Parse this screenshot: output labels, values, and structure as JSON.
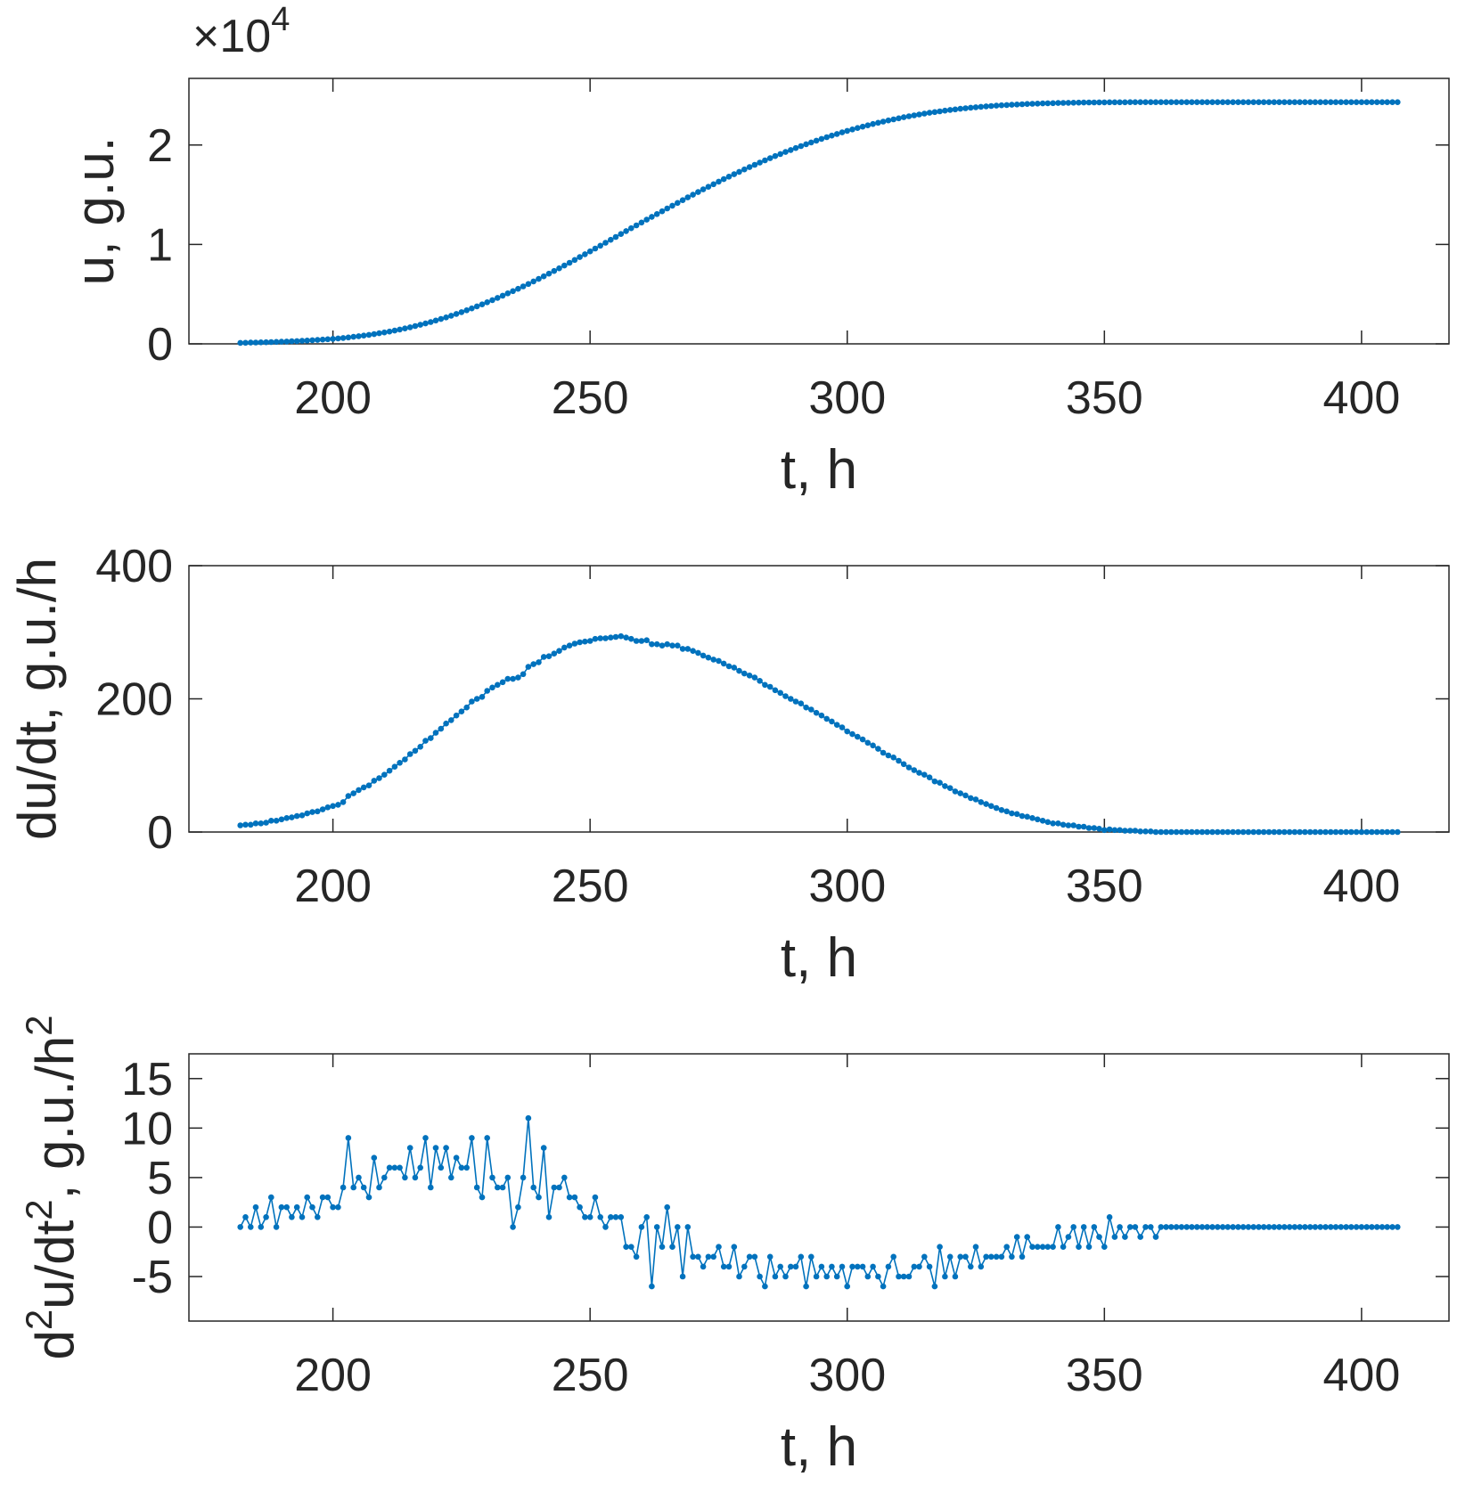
{
  "chart_data": [
    {
      "type": "line",
      "marker": "dot",
      "color": "#0072BD",
      "xlabel": "t, h",
      "ylabel_parts": [
        {
          "text": "u, g.u."
        }
      ],
      "y_exponent_label": {
        "times": "×10",
        "power": "4"
      },
      "xlim": [
        172,
        417
      ],
      "ylim": [
        0,
        26700
      ],
      "xticks": [
        200,
        250,
        300,
        350,
        400
      ],
      "yticks": [
        0,
        10000,
        20000
      ],
      "yticklabels": [
        "0",
        "1",
        "2"
      ],
      "grid": false,
      "series_key": "u"
    },
    {
      "type": "line",
      "marker": "dot",
      "color": "#0072BD",
      "xlabel": "t, h",
      "ylabel_parts": [
        {
          "text": "du/dt, g.u./h"
        }
      ],
      "xlim": [
        172,
        417
      ],
      "ylim": [
        0,
        400
      ],
      "xticks": [
        200,
        250,
        300,
        350,
        400
      ],
      "yticks": [
        0,
        200,
        400
      ],
      "yticklabels": [
        "0",
        "200",
        "400"
      ],
      "grid": false,
      "series_key": "du"
    },
    {
      "type": "line",
      "marker": "dot",
      "color": "#0072BD",
      "xlabel": "t, h",
      "ylabel_parts": [
        {
          "text": "d"
        },
        {
          "text": "2",
          "sup": true
        },
        {
          "text": "u/dt"
        },
        {
          "text": "2",
          "sup": true
        },
        {
          "text": ", g.u./h"
        },
        {
          "text": "2",
          "sup": true
        }
      ],
      "xlim": [
        172,
        417
      ],
      "ylim": [
        -9.5,
        17.5
      ],
      "xticks": [
        200,
        250,
        300,
        350,
        400
      ],
      "yticks": [
        -5,
        0,
        5,
        10,
        15
      ],
      "yticklabels": [
        "-5",
        "0",
        "5",
        "10",
        "15"
      ],
      "grid": false,
      "series_key": "d2u"
    }
  ],
  "series": {
    "t": [
      182,
      183,
      184,
      185,
      186,
      187,
      188,
      189,
      190,
      191,
      192,
      193,
      194,
      195,
      196,
      197,
      198,
      199,
      200,
      201,
      202,
      203,
      204,
      205,
      206,
      207,
      208,
      209,
      210,
      211,
      212,
      213,
      214,
      215,
      216,
      217,
      218,
      219,
      220,
      221,
      222,
      223,
      224,
      225,
      226,
      227,
      228,
      229,
      230,
      231,
      232,
      233,
      234,
      235,
      236,
      237,
      238,
      239,
      240,
      241,
      242,
      243,
      244,
      245,
      246,
      247,
      248,
      249,
      250,
      251,
      252,
      253,
      254,
      255,
      256,
      257,
      258,
      259,
      260,
      261,
      262,
      263,
      264,
      265,
      266,
      267,
      268,
      269,
      270,
      271,
      272,
      273,
      274,
      275,
      276,
      277,
      278,
      279,
      280,
      281,
      282,
      283,
      284,
      285,
      286,
      287,
      288,
      289,
      290,
      291,
      292,
      293,
      294,
      295,
      296,
      297,
      298,
      299,
      300,
      301,
      302,
      303,
      304,
      305,
      306,
      307,
      308,
      309,
      310,
      311,
      312,
      313,
      314,
      315,
      316,
      317,
      318,
      319,
      320,
      321,
      322,
      323,
      324,
      325,
      326,
      327,
      328,
      329,
      330,
      331,
      332,
      333,
      334,
      335,
      336,
      337,
      338,
      339,
      340,
      341,
      342,
      343,
      344,
      345,
      346,
      347,
      348,
      349,
      350,
      351,
      352,
      353,
      354,
      355,
      356,
      357,
      358,
      359,
      360,
      361,
      362,
      363,
      364,
      365,
      366,
      367,
      368,
      369,
      370,
      371,
      372,
      373,
      374,
      375,
      376,
      377,
      378,
      379,
      380,
      381,
      382,
      383,
      384,
      385,
      386,
      387,
      388,
      389,
      390,
      391,
      392,
      393,
      394,
      395,
      396,
      397,
      398,
      399,
      400,
      401,
      402,
      403,
      404,
      405,
      406,
      407
    ],
    "u": [
      100,
      111,
      122,
      135,
      148,
      162,
      179,
      196,
      215,
      236,
      258,
      282,
      307,
      335,
      365,
      396,
      430,
      467,
      506,
      547,
      592,
      646,
      704,
      767,
      834,
      904,
      981,
      1062,
      1148,
      1240,
      1338,
      1442,
      1551,
      1668,
      1790,
      1918,
      2055,
      2196,
      2345,
      2500,
      2663,
      2831,
      3006,
      3187,
      3374,
      3570,
      3770,
      3973,
      4185,
      4402,
      4623,
      4848,
      5078,
      5308,
      5540,
      5777,
      6025,
      6277,
      6532,
      6795,
      7059,
      7327,
      7599,
      7876,
      8156,
      8439,
      8724,
      9010,
      9297,
      9587,
      9878,
      10169,
      10461,
      10754,
      11048,
      11340,
      11630,
      11917,
      12204,
      12492,
      12774,
      13056,
      13336,
      13618,
      13898,
      14178,
      14453,
      14728,
      15000,
      15269,
      15534,
      15796,
      16055,
      16312,
      16565,
      16814,
      17061,
      17303,
      17541,
      17776,
      18008,
      18235,
      18456,
      18674,
      18887,
      19096,
      19300,
      19500,
      19696,
      19889,
      20076,
      20260,
      20439,
      20614,
      20784,
      20950,
      21111,
      21268,
      21419,
      21566,
      21709,
      21848,
      21982,
      22112,
      22237,
      22356,
      22471,
      22583,
      22690,
      22792,
      22889,
      22982,
      23071,
      23157,
      23239,
      23315,
      23389,
      23458,
      23524,
      23585,
      23643,
      23698,
      23749,
      23798,
      23843,
      23885,
      23924,
      23960,
      23993,
      24024,
      24052,
      24079,
      24103,
      24126,
      24147,
      24166,
      24183,
      24198,
      24211,
      24224,
      24235,
      24245,
      24255,
      24263,
      24271,
      24277,
      24283,
      24288,
      24291,
      24295,
      24298,
      24301,
      24303,
      24305,
      24307,
      24308,
      24309,
      24310,
      24310,
      24310,
      24310,
      24310,
      24310,
      24310,
      24310,
      24310,
      24310,
      24310,
      24310,
      24310,
      24310,
      24310,
      24310,
      24310,
      24310,
      24310,
      24310,
      24310,
      24310,
      24310,
      24310,
      24310,
      24310,
      24310,
      24310,
      24310,
      24310,
      24310,
      24310,
      24310,
      24310,
      24310,
      24310,
      24310,
      24310,
      24310,
      24310,
      24310,
      24310,
      24310,
      24310,
      24310,
      24310,
      24310,
      24310,
      24310
    ],
    "du": [
      10,
      11,
      11,
      13,
      13,
      14,
      17,
      17,
      19,
      21,
      22,
      24,
      25,
      28,
      30,
      31,
      34,
      37,
      39,
      41,
      45,
      54,
      58,
      63,
      67,
      70,
      77,
      81,
      86,
      92,
      98,
      104,
      109,
      117,
      122,
      128,
      137,
      141,
      149,
      155,
      163,
      168,
      175,
      181,
      187,
      196,
      200,
      203,
      212,
      217,
      221,
      225,
      230,
      230,
      232,
      237,
      248,
      252,
      255,
      263,
      264,
      268,
      272,
      277,
      280,
      283,
      285,
      286,
      287,
      290,
      291,
      291,
      292,
      293,
      294,
      292,
      290,
      287,
      287,
      288,
      282,
      282,
      280,
      282,
      280,
      280,
      275,
      275,
      272,
      269,
      265,
      262,
      259,
      257,
      253,
      249,
      247,
      242,
      238,
      235,
      232,
      227,
      221,
      218,
      213,
      209,
      204,
      200,
      196,
      193,
      187,
      184,
      179,
      175,
      170,
      166,
      161,
      157,
      151,
      147,
      143,
      139,
      134,
      130,
      125,
      119,
      115,
      112,
      107,
      102,
      97,
      93,
      89,
      86,
      82,
      76,
      74,
      69,
      66,
      61,
      58,
      55,
      51,
      49,
      45,
      42,
      39,
      36,
      33,
      31,
      28,
      27,
      24,
      23,
      21,
      19,
      17,
      15,
      13,
      13,
      11,
      10,
      10,
      8,
      8,
      6,
      6,
      5,
      3,
      4,
      3,
      3,
      2,
      2,
      2,
      1,
      1,
      1,
      0,
      0,
      0,
      0,
      0,
      0,
      0,
      0,
      0,
      0,
      0,
      0,
      0,
      0,
      0,
      0,
      0,
      0,
      0,
      0,
      0,
      0,
      0,
      0,
      0,
      0,
      0,
      0,
      0,
      0,
      0,
      0,
      0,
      0,
      0,
      0,
      0,
      0,
      0,
      0,
      0,
      0,
      0,
      0,
      0,
      0,
      0,
      0,
      0,
      0,
      0,
      0,
      0,
      0
    ],
    "d2u": [
      0,
      1,
      0,
      2,
      0,
      1,
      3,
      0,
      2,
      2,
      1,
      2,
      1,
      3,
      2,
      1,
      3,
      3,
      2,
      2,
      4,
      9,
      4,
      5,
      4,
      3,
      7,
      4,
      5,
      6,
      6,
      6,
      5,
      8,
      5,
      6,
      9,
      4,
      8,
      6,
      8,
      5,
      7,
      6,
      6,
      9,
      4,
      3,
      9,
      5,
      4,
      4,
      5,
      0,
      2,
      5,
      11,
      4,
      3,
      8,
      1,
      4,
      4,
      5,
      3,
      3,
      2,
      1,
      1,
      3,
      1,
      0,
      1,
      1,
      1,
      -2,
      -2,
      -3,
      0,
      1,
      -6,
      0,
      -2,
      2,
      -2,
      0,
      -5,
      0,
      -3,
      -3,
      -4,
      -3,
      -3,
      -2,
      -4,
      -4,
      -2,
      -5,
      -4,
      -3,
      -3,
      -5,
      -6,
      -3,
      -5,
      -4,
      -5,
      -4,
      -4,
      -3,
      -6,
      -3,
      -5,
      -4,
      -5,
      -4,
      -5,
      -4,
      -6,
      -4,
      -4,
      -4,
      -5,
      -4,
      -5,
      -6,
      -4,
      -3,
      -5,
      -5,
      -5,
      -4,
      -4,
      -3,
      -4,
      -6,
      -2,
      -5,
      -3,
      -5,
      -3,
      -3,
      -4,
      -2,
      -4,
      -3,
      -3,
      -3,
      -3,
      -2,
      -3,
      -1,
      -3,
      -1,
      -2,
      -2,
      -2,
      -2,
      -2,
      0,
      -2,
      -1,
      0,
      -2,
      0,
      -2,
      0,
      -1,
      -2,
      1,
      -1,
      0,
      -1,
      0,
      0,
      -1,
      0,
      0,
      -1,
      0,
      0,
      0,
      0,
      0,
      0,
      0,
      0,
      0,
      0,
      0,
      0,
      0,
      0,
      0,
      0,
      0,
      0,
      0,
      0,
      0,
      0,
      0,
      0,
      0,
      0,
      0,
      0,
      0,
      0,
      0,
      0,
      0,
      0,
      0,
      0,
      0,
      0,
      0,
      0,
      0,
      0,
      0,
      0,
      0,
      0,
      0,
      0,
      0,
      0,
      0,
      0
    ]
  }
}
